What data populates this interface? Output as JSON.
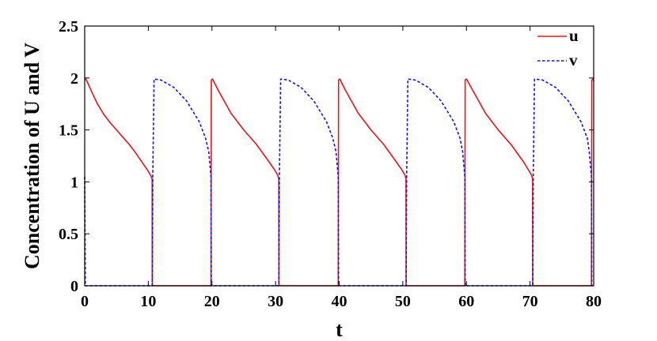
{
  "chart_data": {
    "type": "line",
    "xlabel": "t",
    "ylabel": "Concentration of U and V",
    "xlim": [
      0,
      80
    ],
    "ylim": [
      0,
      2.5
    ],
    "xticks": [
      "0",
      "10",
      "20",
      "30",
      "40",
      "50",
      "60",
      "70",
      "80"
    ],
    "yticks": [
      "0",
      "0.5",
      "1",
      "1.5",
      "2",
      "2.5"
    ],
    "grid": false,
    "legend_position": "top-right",
    "series": [
      {
        "name": "u",
        "color": "#e8141e",
        "style": "solid",
        "x": [
          0,
          0.2,
          1,
          2,
          3,
          4,
          5,
          6,
          7,
          8,
          9,
          9.8,
          10.3,
          10.6,
          10.62,
          10.7,
          19.8,
          19.85,
          19.9,
          20.1,
          21,
          23,
          25,
          27,
          29,
          29.8,
          30.3,
          30.5,
          30.52,
          30.6,
          39.8,
          39.85,
          39.9,
          40.1,
          41,
          43,
          45,
          47,
          49,
          49.8,
          50.3,
          50.5,
          50.52,
          50.6,
          59.7,
          59.75,
          59.8,
          60.0,
          61,
          63,
          65,
          67,
          69,
          69.7,
          70.2,
          70.4,
          70.42,
          70.5,
          79.6,
          79.65,
          79.7,
          79.9,
          80
        ],
        "y": [
          1.98,
          1.99,
          1.88,
          1.75,
          1.65,
          1.57,
          1.5,
          1.43,
          1.36,
          1.28,
          1.19,
          1.12,
          1.07,
          1.03,
          0.0,
          0.0,
          0.0,
          0.0,
          1.98,
          1.99,
          1.88,
          1.66,
          1.5,
          1.36,
          1.19,
          1.12,
          1.07,
          1.03,
          0.0,
          0.0,
          0.0,
          0.0,
          1.98,
          1.99,
          1.88,
          1.66,
          1.5,
          1.36,
          1.19,
          1.12,
          1.07,
          1.03,
          0.0,
          0.0,
          0.0,
          0.0,
          1.98,
          1.99,
          1.88,
          1.66,
          1.5,
          1.36,
          1.19,
          1.12,
          1.07,
          1.03,
          0.0,
          0.0,
          0.0,
          0.0,
          1.98,
          1.99,
          1.97
        ]
      },
      {
        "name": "v",
        "color": "#1414e6",
        "style": "dashed",
        "x": [
          0,
          0.1,
          0.3,
          10.62,
          10.7,
          10.9,
          12,
          14,
          16,
          18,
          19,
          19.5,
          19.85,
          19.9,
          30.52,
          30.6,
          30.8,
          32,
          34,
          36,
          38,
          39,
          39.5,
          39.85,
          39.9,
          50.52,
          50.6,
          50.8,
          52,
          54,
          56,
          58,
          59,
          59.4,
          59.75,
          59.8,
          70.42,
          70.5,
          70.7,
          72,
          74,
          76,
          78,
          79,
          79.3,
          79.65,
          79.7,
          80
        ],
        "y": [
          1.05,
          0.0,
          0.0,
          0.0,
          1.05,
          1.99,
          1.98,
          1.91,
          1.78,
          1.58,
          1.42,
          1.29,
          1.05,
          0.0,
          0.0,
          1.05,
          1.99,
          1.98,
          1.91,
          1.78,
          1.58,
          1.42,
          1.29,
          1.05,
          0.0,
          0.0,
          1.05,
          1.99,
          1.98,
          1.91,
          1.78,
          1.58,
          1.42,
          1.29,
          1.05,
          0.0,
          0.0,
          1.05,
          1.99,
          1.98,
          1.91,
          1.78,
          1.58,
          1.42,
          1.29,
          1.05,
          0.0,
          0.0
        ]
      }
    ]
  }
}
